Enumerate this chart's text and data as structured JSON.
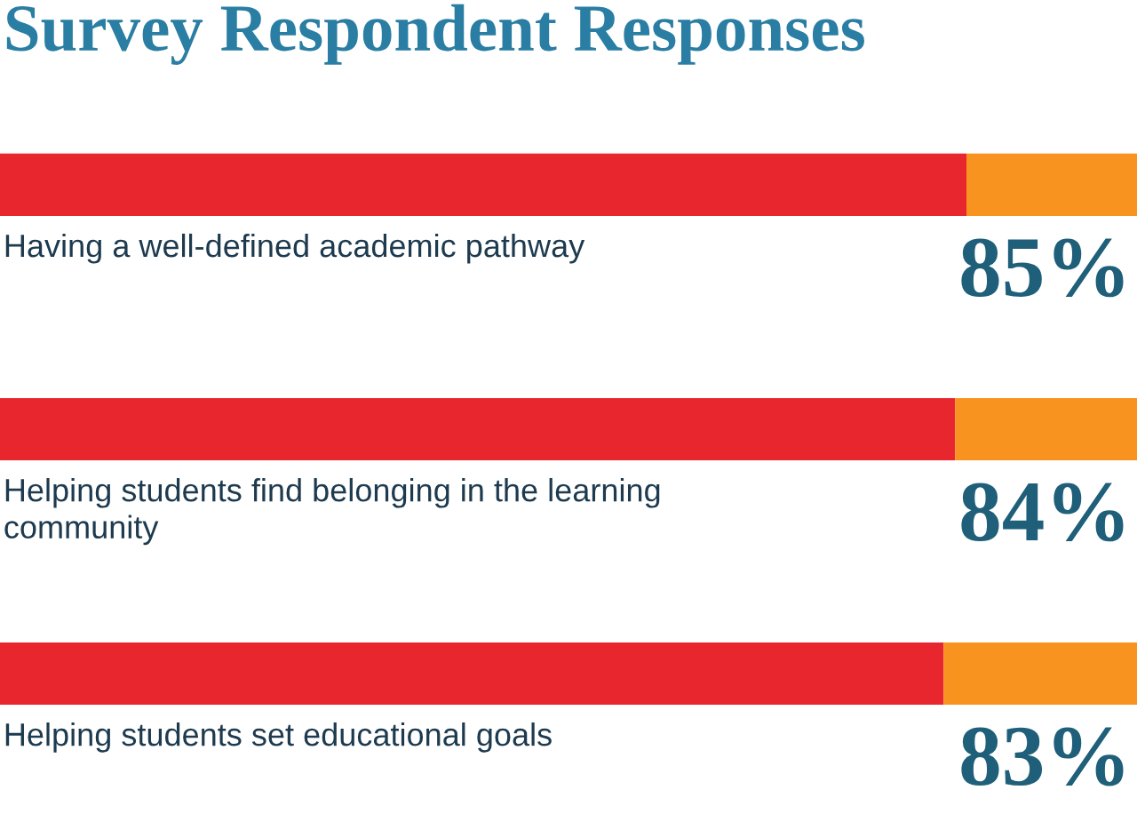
{
  "chart_data": {
    "type": "bar",
    "orientation": "horizontal",
    "stacked": true,
    "title": "Survey Respondent Responses",
    "categories": [
      "Having a well-defined academic pathway",
      "Helping students find belonging in the learning\ncommunity",
      "Helping students set educational goals"
    ],
    "series": [
      {
        "color": "#e8262e",
        "values": [
          85,
          84,
          83
        ],
        "value_labels": [
          "85%",
          "84%",
          "83%"
        ]
      },
      {
        "color": "#f7931e",
        "values": [
          15,
          16,
          17
        ]
      }
    ],
    "xlim": [
      0,
      100
    ]
  }
}
